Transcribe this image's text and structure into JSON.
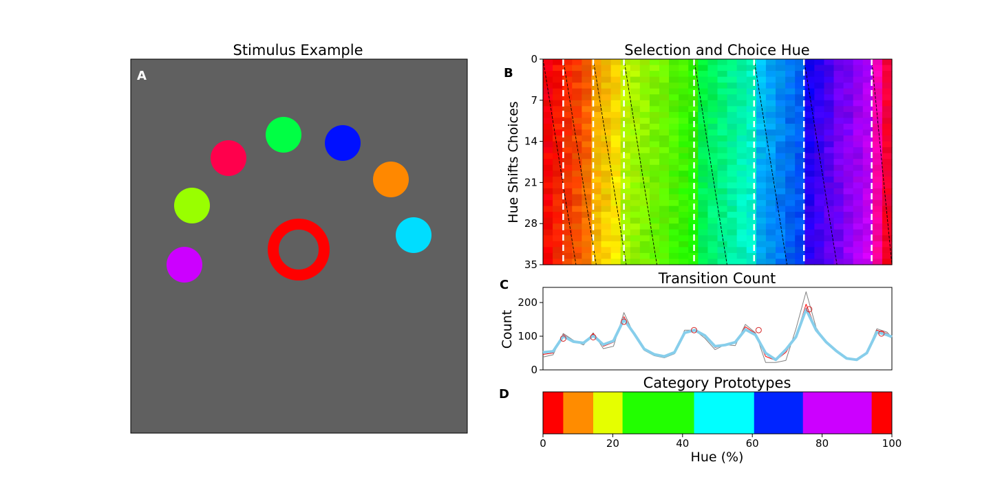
{
  "chart_data": [
    {
      "type": "scatter",
      "panel": "A",
      "title": "Stimulus Example",
      "background": "#606060",
      "items": [
        {
          "hue_color": "#00ff44"
        },
        {
          "hue_color": "#0010ff"
        },
        {
          "hue_color": "#ff004c"
        },
        {
          "hue_color": "#ff8800"
        },
        {
          "hue_color": "#99ff00"
        },
        {
          "hue_color": "#00ddff"
        },
        {
          "hue_color": "#cc00ff"
        }
      ],
      "target_ring_color": "#ff0000"
    },
    {
      "type": "heatmap",
      "panel": "B",
      "title": "Selection and Choice Hue",
      "ylabel": "Hue Shifts Choices",
      "ylim": [
        0,
        35
      ],
      "yticks": [
        "0",
        "7",
        "14",
        "21",
        "28",
        "35"
      ],
      "x_range": [
        0,
        100
      ],
      "boundaries": [
        5.8,
        14.4,
        23.2,
        43.3,
        60.5,
        74.8,
        94.2
      ],
      "shift_per_row": 0.9
    },
    {
      "type": "line",
      "panel": "C",
      "title": "Transition Count",
      "ylabel": "Count",
      "ylim": [
        0,
        245
      ],
      "yticks": [
        "0",
        "100",
        "200"
      ],
      "x": [
        0,
        2.9,
        5.8,
        8.7,
        11.6,
        14.4,
        17.3,
        20.2,
        23.2,
        26.1,
        29.0,
        31.9,
        34.8,
        37.7,
        40.6,
        43.5,
        46.4,
        49.3,
        52.2,
        55.1,
        58.0,
        60.9,
        63.8,
        66.7,
        69.6,
        72.5,
        75.4,
        78.3,
        81.2,
        84.1,
        87.0,
        89.9,
        92.8,
        95.7,
        98.6,
        100
      ],
      "series": [
        {
          "color": "#808080",
          "values": [
            38,
            45,
            108,
            88,
            74,
            110,
            63,
            70,
            170,
            105,
            58,
            42,
            36,
            48,
            118,
            118,
            94,
            60,
            75,
            72,
            135,
            110,
            22,
            22,
            28,
            122,
            232,
            125,
            80,
            58,
            36,
            28,
            52,
            122,
            112,
            96
          ]
        },
        {
          "color": "#ff0000",
          "values": [
            46,
            50,
            105,
            85,
            78,
            108,
            70,
            82,
            158,
            108,
            60,
            44,
            38,
            50,
            112,
            118,
            100,
            66,
            74,
            80,
            128,
            108,
            40,
            28,
            52,
            100,
            195,
            120,
            82,
            56,
            34,
            30,
            50,
            118,
            108,
            98
          ]
        },
        {
          "color": "#87ceeb",
          "values": [
            52,
            55,
            100,
            84,
            80,
            102,
            75,
            86,
            150,
            108,
            62,
            46,
            40,
            52,
            110,
            118,
            102,
            70,
            74,
            82,
            120,
            104,
            50,
            30,
            60,
            98,
            180,
            118,
            82,
            56,
            34,
            30,
            50,
            112,
            104,
            98
          ]
        }
      ],
      "markers": [
        {
          "x": 5.8,
          "y": 93
        },
        {
          "x": 14.4,
          "y": 97
        },
        {
          "x": 23.2,
          "y": 143
        },
        {
          "x": 43.3,
          "y": 118
        },
        {
          "x": 61.8,
          "y": 118
        },
        {
          "x": 76.3,
          "y": 180
        },
        {
          "x": 97.0,
          "y": 108
        }
      ]
    },
    {
      "type": "bar",
      "panel": "D",
      "title": "Category Prototypes",
      "xlabel": "Hue (%)",
      "xlim": [
        0,
        100
      ],
      "xticks": [
        "0",
        "20",
        "40",
        "60",
        "80",
        "100"
      ],
      "segments": [
        {
          "from": 0,
          "to": 5.8,
          "color": "#ff0000"
        },
        {
          "from": 5.8,
          "to": 14.4,
          "color": "#ff8c00"
        },
        {
          "from": 14.4,
          "to": 22.8,
          "color": "#e5ff00"
        },
        {
          "from": 22.8,
          "to": 43.3,
          "color": "#22ff00"
        },
        {
          "from": 43.3,
          "to": 60.5,
          "color": "#00ffff"
        },
        {
          "from": 60.5,
          "to": 74.5,
          "color": "#0024ff"
        },
        {
          "from": 74.5,
          "to": 94.2,
          "color": "#cc00ff"
        },
        {
          "from": 94.2,
          "to": 100,
          "color": "#ff0000"
        }
      ]
    }
  ],
  "panel_labels": {
    "a": "A",
    "b": "B",
    "c": "C",
    "d": "D"
  }
}
